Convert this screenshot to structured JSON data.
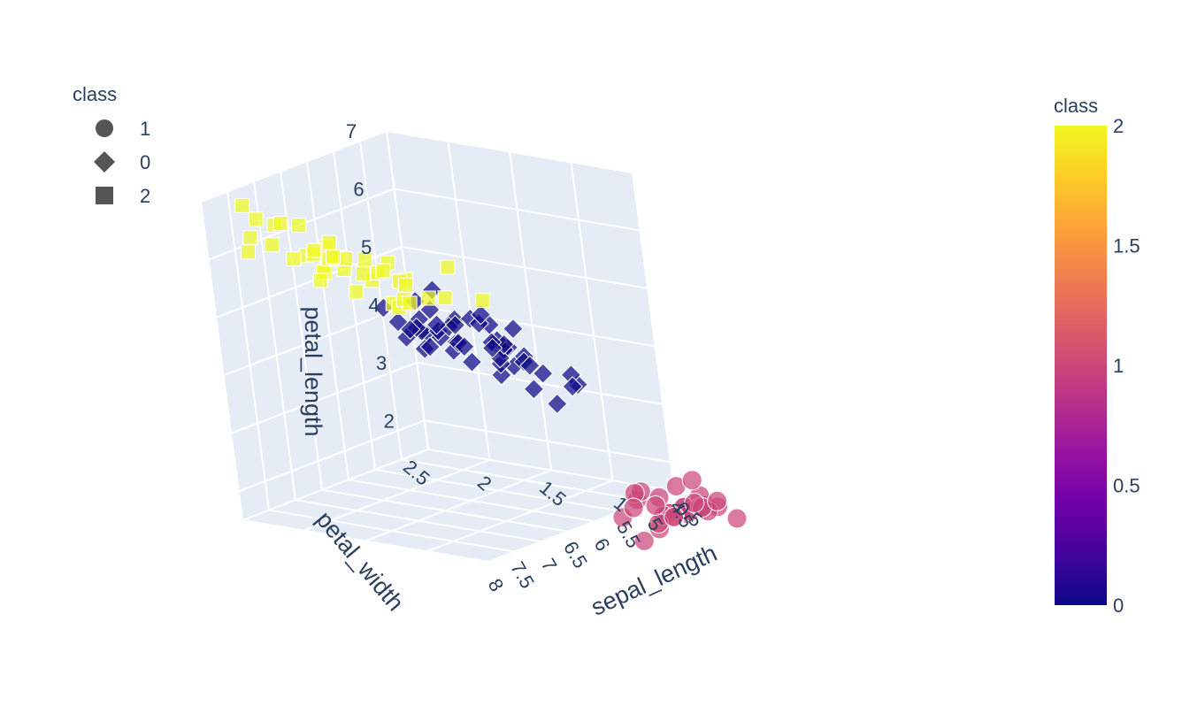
{
  "chart_data": {
    "type": "scatter3d",
    "legend": {
      "title": "class",
      "entries": [
        {
          "label": "1",
          "symbol": "circle"
        },
        {
          "label": "0",
          "symbol": "diamond"
        },
        {
          "label": "2",
          "symbol": "square"
        }
      ]
    },
    "colorbar": {
      "title": "class",
      "range": [
        0,
        2
      ],
      "ticks": [
        "2",
        "1.5",
        "1",
        "0.5",
        "0"
      ],
      "colorscale": [
        "#0d0887",
        "#46039f",
        "#7201a8",
        "#9c179e",
        "#bd3786",
        "#d8576b",
        "#ed7953",
        "#fb9f3a",
        "#fdca26",
        "#f0f921"
      ]
    },
    "axes": {
      "x": {
        "title": "sepal_length",
        "range": [
          4.5,
          8
        ],
        "ticks": [
          "4.5",
          "5",
          "5.5",
          "6",
          "6.5",
          "7",
          "7.5",
          "8"
        ]
      },
      "y": {
        "title": "petal_width",
        "range": [
          0.5,
          2.5
        ],
        "ticks": [
          "0.5",
          "1",
          "1.5",
          "2",
          "2.5"
        ]
      },
      "z": {
        "title": "petal_length",
        "range": [
          1.5,
          7
        ],
        "ticks": [
          "7",
          "6",
          "5",
          "4",
          "3",
          "2"
        ]
      }
    },
    "series": [
      {
        "name": "1",
        "symbol": "circle",
        "color_value": 1,
        "color": "#cc4778",
        "points": [
          [
            4.3,
            0.1,
            1.1
          ],
          [
            5.0,
            0.2,
            1.5
          ],
          [
            5.8,
            0.2,
            1.2
          ],
          [
            4.8,
            0.3,
            1.4
          ],
          [
            5.4,
            0.4,
            1.7
          ],
          [
            5.1,
            0.5,
            1.7
          ],
          [
            4.6,
            0.2,
            1.4
          ],
          [
            5.7,
            0.4,
            1.5
          ],
          [
            4.4,
            0.2,
            1.3
          ],
          [
            5.2,
            0.1,
            1.5
          ],
          [
            4.9,
            0.2,
            1.4
          ],
          [
            5.5,
            0.2,
            1.3
          ],
          [
            5.0,
            0.6,
            1.6
          ],
          [
            4.7,
            0.2,
            1.6
          ],
          [
            5.3,
            0.2,
            1.5
          ],
          [
            5.1,
            0.3,
            1.4
          ],
          [
            4.5,
            0.3,
            1.3
          ],
          [
            5.4,
            0.2,
            1.5
          ],
          [
            4.8,
            0.1,
            1.4
          ],
          [
            5.0,
            0.4,
            1.6
          ],
          [
            5.2,
            0.2,
            1.4
          ],
          [
            4.9,
            0.1,
            1.5
          ],
          [
            5.1,
            0.2,
            1.9
          ],
          [
            4.6,
            0.3,
            1.4
          ],
          [
            5.5,
            0.2,
            1.4
          ],
          [
            5.0,
            0.3,
            1.3
          ],
          [
            4.8,
            0.2,
            1.9
          ],
          [
            5.7,
            0.3,
            1.7
          ],
          [
            4.4,
            0.2,
            1.4
          ],
          [
            5.3,
            0.3,
            1.6
          ]
        ]
      },
      {
        "name": "0",
        "symbol": "diamond",
        "color_value": 0,
        "color": "#0d0887",
        "points": [
          [
            7.0,
            1.4,
            4.7
          ],
          [
            6.4,
            1.5,
            4.5
          ],
          [
            6.9,
            1.5,
            4.9
          ],
          [
            5.5,
            1.3,
            4.0
          ],
          [
            6.5,
            1.5,
            4.6
          ],
          [
            5.7,
            1.3,
            4.5
          ],
          [
            6.3,
            1.6,
            4.7
          ],
          [
            4.9,
            1.0,
            3.3
          ],
          [
            6.6,
            1.3,
            4.6
          ],
          [
            5.2,
            1.4,
            3.9
          ],
          [
            5.0,
            1.0,
            3.5
          ],
          [
            5.9,
            1.5,
            4.2
          ],
          [
            6.0,
            1.0,
            4.0
          ],
          [
            6.1,
            1.4,
            4.7
          ],
          [
            5.6,
            1.3,
            3.6
          ],
          [
            6.7,
            1.4,
            4.4
          ],
          [
            5.6,
            1.5,
            4.5
          ],
          [
            5.8,
            1.0,
            4.1
          ],
          [
            6.2,
            1.5,
            4.5
          ],
          [
            5.6,
            1.1,
            3.9
          ],
          [
            5.9,
            1.8,
            4.8
          ],
          [
            6.1,
            1.3,
            4.0
          ],
          [
            6.3,
            1.5,
            4.9
          ],
          [
            6.1,
            1.2,
            4.7
          ],
          [
            6.4,
            1.3,
            4.3
          ],
          [
            6.6,
            1.4,
            4.4
          ],
          [
            6.8,
            1.4,
            4.8
          ],
          [
            6.7,
            1.7,
            5.0
          ],
          [
            6.0,
            1.5,
            4.5
          ],
          [
            5.7,
            1.0,
            3.5
          ],
          [
            5.5,
            1.1,
            3.8
          ],
          [
            5.5,
            1.0,
            3.7
          ],
          [
            5.8,
            1.2,
            3.9
          ],
          [
            6.0,
            1.6,
            5.1
          ],
          [
            5.4,
            1.5,
            4.5
          ],
          [
            6.0,
            1.6,
            4.5
          ],
          [
            6.7,
            1.5,
            4.7
          ],
          [
            6.3,
            1.3,
            4.4
          ],
          [
            5.6,
            1.3,
            4.1
          ],
          [
            5.5,
            1.3,
            4.0
          ],
          [
            5.5,
            1.2,
            4.4
          ],
          [
            6.1,
            1.4,
            4.6
          ],
          [
            5.8,
            1.2,
            4.0
          ],
          [
            5.0,
            1.0,
            3.3
          ],
          [
            5.6,
            1.3,
            4.2
          ],
          [
            5.7,
            1.2,
            4.2
          ],
          [
            5.7,
            1.3,
            4.2
          ],
          [
            6.2,
            1.3,
            4.3
          ],
          [
            5.1,
            1.1,
            3.0
          ],
          [
            5.7,
            1.3,
            4.1
          ]
        ]
      },
      {
        "name": "2",
        "symbol": "square",
        "color_value": 2,
        "color": "#f0f921",
        "points": [
          [
            6.3,
            2.5,
            6.0
          ],
          [
            5.8,
            1.9,
            5.1
          ],
          [
            7.1,
            2.1,
            5.9
          ],
          [
            6.3,
            1.8,
            5.6
          ],
          [
            6.5,
            2.2,
            5.8
          ],
          [
            7.6,
            2.1,
            6.6
          ],
          [
            4.9,
            1.7,
            4.5
          ],
          [
            7.3,
            1.8,
            6.3
          ],
          [
            6.7,
            1.8,
            5.8
          ],
          [
            7.2,
            2.5,
            6.1
          ],
          [
            6.5,
            2.0,
            5.1
          ],
          [
            6.4,
            1.9,
            5.3
          ],
          [
            6.8,
            2.1,
            5.5
          ],
          [
            5.7,
            2.0,
            5.0
          ],
          [
            5.8,
            2.4,
            5.1
          ],
          [
            6.4,
            2.3,
            5.3
          ],
          [
            6.5,
            1.8,
            5.5
          ],
          [
            7.7,
            2.2,
            6.7
          ],
          [
            7.7,
            2.3,
            6.9
          ],
          [
            6.0,
            1.5,
            5.0
          ],
          [
            6.9,
            2.3,
            5.7
          ],
          [
            5.6,
            2.0,
            4.9
          ],
          [
            7.7,
            2.0,
            6.7
          ],
          [
            6.3,
            1.8,
            4.9
          ],
          [
            6.7,
            2.1,
            5.7
          ],
          [
            7.2,
            1.8,
            6.0
          ],
          [
            6.2,
            1.8,
            4.8
          ],
          [
            6.1,
            1.8,
            4.9
          ],
          [
            6.4,
            2.1,
            5.6
          ],
          [
            7.2,
            1.6,
            5.8
          ],
          [
            7.4,
            1.9,
            6.1
          ],
          [
            7.9,
            2.0,
            6.4
          ],
          [
            6.4,
            2.2,
            5.6
          ],
          [
            6.3,
            1.5,
            5.1
          ],
          [
            6.1,
            1.4,
            5.6
          ],
          [
            7.7,
            2.3,
            6.1
          ],
          [
            6.3,
            2.4,
            5.6
          ],
          [
            6.4,
            1.8,
            5.5
          ],
          [
            6.0,
            1.8,
            4.8
          ],
          [
            6.9,
            2.1,
            5.4
          ]
        ]
      }
    ]
  }
}
